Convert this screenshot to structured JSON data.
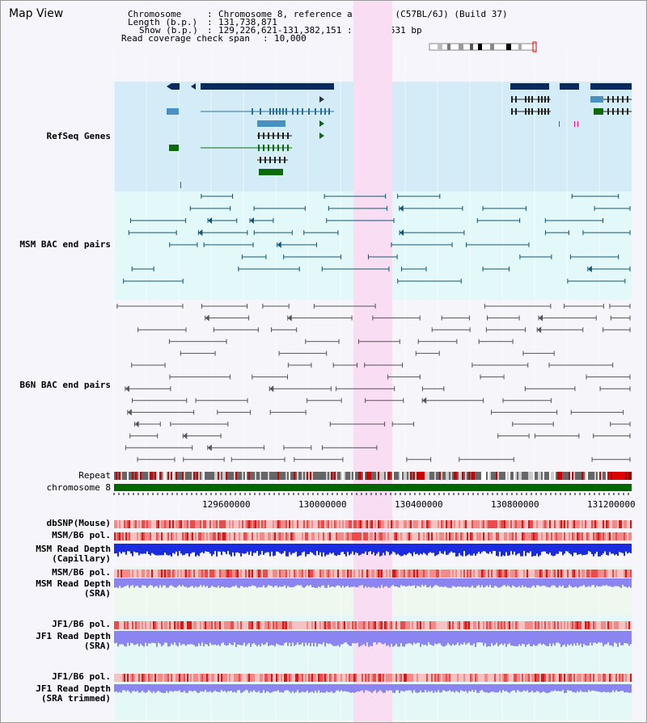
{
  "view": {
    "title": "Map View",
    "info": {
      "chromosome_label": "Chromosome",
      "chromosome_value": "Chromosome 8, reference assembly (C57BL/6J) (Build 37)",
      "length_label": "Length (b.p.)",
      "length_value": "131,738,871",
      "show_label": "Show (b.p.)",
      "show_value": "129,226,621-131,382,151 : 2,155,531 bp",
      "coverage_label": "Read coverage check span",
      "coverage_value": "10,000"
    },
    "highlight_color": "#f9ddf2"
  },
  "tracks": {
    "refseq": {
      "label": "RefSeq Genes",
      "color": "#1a3da6",
      "bg": "#d4ecf8"
    },
    "msm_bac": {
      "label": "MSM BAC end pairs",
      "color": "#115577",
      "bg": "#e3f8f8"
    },
    "b6n_bac": {
      "label": "B6N BAC end pairs",
      "color": "#555555",
      "bg": "#f5f5fa"
    },
    "repeat": {
      "label": "Repeat"
    },
    "chromosome": {
      "label": "chromosome 8",
      "color": "#006600"
    },
    "dbsnp": {
      "label": "dbSNP(Mouse)",
      "color": "#555555"
    },
    "msm_b6_pol_1": {
      "label": "MSM/B6 pol.",
      "color": "#555555"
    },
    "msm_depth_cap": {
      "label_line1": "MSM Read Depth",
      "label_line2": "(Capillary)",
      "color": "#555555"
    },
    "msm_b6_pol_2": {
      "label": "MSM/B6 pol.",
      "color": "#e08a00"
    },
    "msm_depth_sra": {
      "label_line1": "MSM Read Depth",
      "label_line2": "(SRA)",
      "color": "#1a2aa6"
    },
    "jf1_b6_pol_1": {
      "label": "JF1/B6 pol.",
      "color": "#e08a00"
    },
    "jf1_depth_sra": {
      "label_line1": "JF1 Read Depth",
      "label_line2": "(SRA)",
      "color": "#1a2aa6"
    },
    "jf1_b6_pol_2": {
      "label": "JF1/B6 pol.",
      "color": "#e08a00"
    },
    "jf1_depth_trim": {
      "label_line1": "JF1 Read Depth",
      "label_line2": "(SRA trimmed)",
      "color": "#1a2aa6"
    }
  },
  "axis": {
    "ticks": [
      "129600000",
      "130000000",
      "130400000",
      "130800000",
      "131200000"
    ]
  }
}
